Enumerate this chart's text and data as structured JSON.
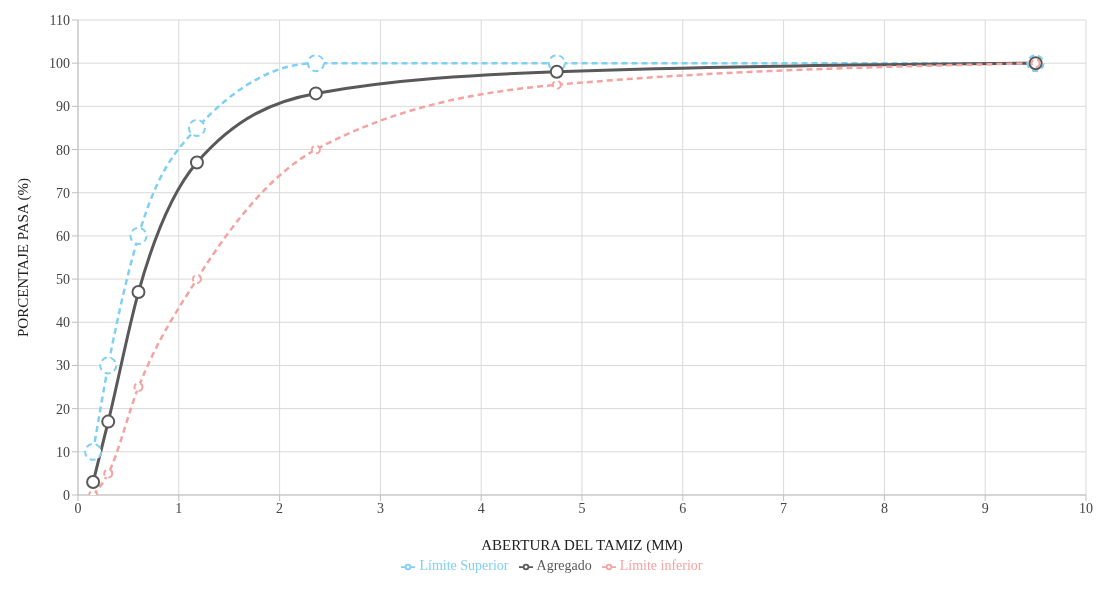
{
  "chart_data": {
    "type": "line",
    "xlabel": "ABERTURA  DEL TAMIZ (MM)",
    "ylabel": "PORCENTAJE   PASA (%)",
    "x": [
      0.15,
      0.3,
      0.6,
      1.18,
      2.36,
      4.75,
      9.5
    ],
    "series": [
      {
        "name": "Límite Superior",
        "color": "#7fd0f2",
        "values": [
          10,
          30,
          60,
          85,
          100,
          100,
          100
        ],
        "line_style": "dashed"
      },
      {
        "name": "Agregado",
        "color": "#595959",
        "values": [
          3,
          17,
          47,
          77,
          93,
          98,
          100
        ],
        "line_style": "solid"
      },
      {
        "name": "Límite inferior",
        "color": "#f4a3a0",
        "values": [
          0,
          5,
          25,
          50,
          80,
          95,
          100
        ],
        "line_style": "dashed"
      }
    ],
    "xlim": [
      0,
      10
    ],
    "xticks": [
      0,
      1,
      2,
      3,
      4,
      5,
      6,
      7,
      8,
      9,
      10
    ],
    "ylim": [
      0,
      110
    ],
    "yticks": [
      0,
      10,
      20,
      30,
      40,
      50,
      60,
      70,
      80,
      90,
      100,
      110
    ],
    "grid": true,
    "legend": "bottom",
    "marker": "circle"
  }
}
